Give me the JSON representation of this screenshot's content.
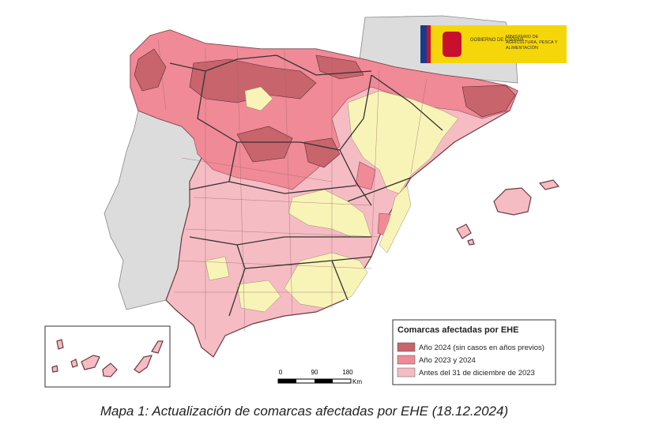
{
  "logo": {
    "government": "GOBIERNO DE ESPAÑA",
    "ministry": "MINISTERIO DE AGRICULTURA, PESCA Y ALIMENTACIÓN"
  },
  "legend": {
    "title": "Comarcas afectadas por EHE",
    "items": [
      {
        "label": "Año 2024 (sin casos en años previos)",
        "color": "#c8646c"
      },
      {
        "label": "Año 2023 y 2024",
        "color": "#f08a96"
      },
      {
        "label": "Antes del 31 de diciembre de 2023",
        "color": "#f6bcc3"
      }
    ]
  },
  "scale_bar": {
    "labels": [
      "0",
      "90",
      "180"
    ],
    "unit": "Km"
  },
  "caption": "Mapa 1: Actualización de comarcas afectadas por EHE (18.12.2024)"
}
